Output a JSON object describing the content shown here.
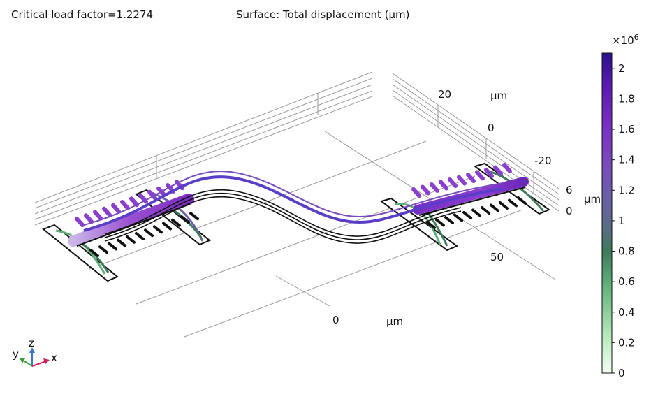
{
  "header": {
    "left_title": "Critical load factor=1.2274",
    "center_title": "Surface: Total displacement (µm)"
  },
  "axes": {
    "unit_label": "µm",
    "x_tick_labels": [
      "0",
      "50"
    ],
    "y_tick_labels": [
      "20",
      "0",
      "-20"
    ],
    "z_tick_labels": [
      "6",
      "0"
    ]
  },
  "triad": {
    "x": "x",
    "y": "y",
    "z": "z"
  },
  "colorbar": {
    "multiplier": "×10",
    "exponent": "6",
    "ticks": [
      "2",
      "1.8",
      "1.6",
      "1.4",
      "1.2",
      "1",
      "0.8",
      "0.6",
      "0.4",
      "0.2",
      "0"
    ],
    "min": 0,
    "max": 2.1,
    "colors": [
      "#f4fff4",
      "#b5e8b8",
      "#5fae78",
      "#3f7a5c",
      "#5b6c86",
      "#6b5fa8",
      "#7a4bbd",
      "#7a2cc4",
      "#5a1ab2",
      "#2a128c"
    ]
  }
}
